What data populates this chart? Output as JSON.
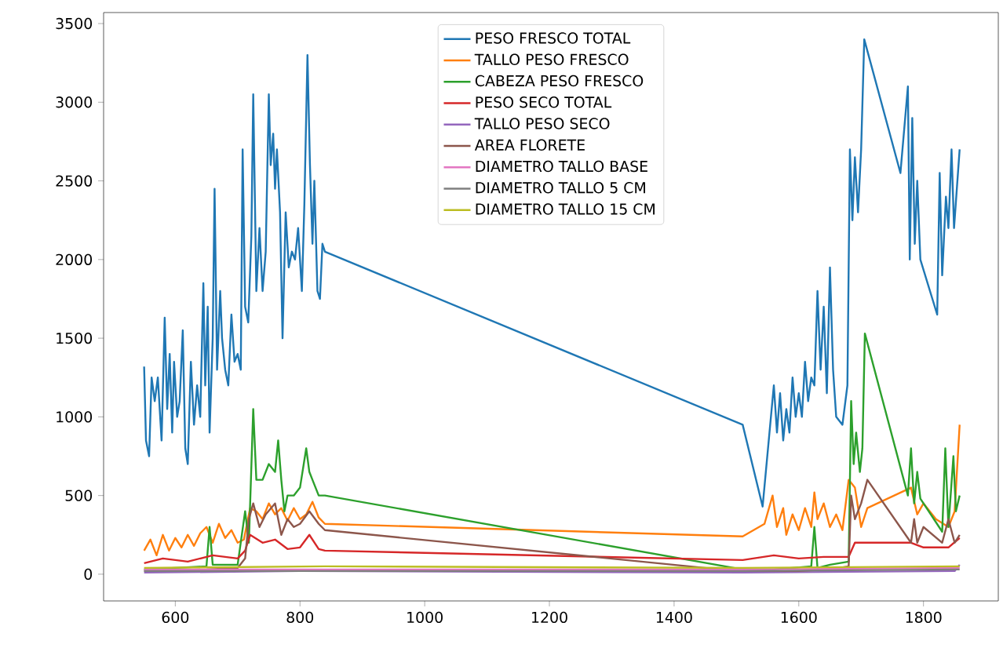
{
  "chart_data": {
    "type": "line",
    "legend": "top",
    "grid": false,
    "xlim": [
      485,
      1920
    ],
    "ylim": [
      -170,
      3570
    ],
    "xticks": [
      600,
      800,
      1000,
      1200,
      1400,
      1600,
      1800
    ],
    "yticks": [
      0,
      500,
      1000,
      1500,
      2000,
      2500,
      3000,
      3500
    ],
    "series": [
      {
        "name": "PESO FRESCO TOTAL",
        "color": "#1f77b4",
        "x": [
          550,
          553,
          558,
          562,
          567,
          572,
          578,
          583,
          587,
          591,
          595,
          598,
          603,
          607,
          612,
          616,
          620,
          625,
          630,
          635,
          640,
          645,
          648,
          652,
          655,
          660,
          663,
          667,
          672,
          675,
          680,
          685,
          690,
          695,
          700,
          705,
          708,
          712,
          717,
          722,
          725,
          730,
          735,
          740,
          745,
          750,
          753,
          757,
          760,
          763,
          768,
          772,
          777,
          782,
          787,
          792,
          797,
          803,
          807,
          812,
          816,
          820,
          823,
          828,
          832,
          836,
          840,
          1510,
          1542,
          1560,
          1565,
          1570,
          1575,
          1580,
          1585,
          1590,
          1595,
          1600,
          1605,
          1610,
          1615,
          1620,
          1625,
          1630,
          1635,
          1640,
          1645,
          1650,
          1655,
          1660,
          1670,
          1678,
          1682,
          1686,
          1690,
          1695,
          1700,
          1705,
          1763,
          1775,
          1778,
          1782,
          1786,
          1790,
          1795,
          1822,
          1826,
          1830,
          1836,
          1840,
          1845,
          1849,
          1858
        ],
        "values": [
          1320,
          850,
          750,
          1250,
          1100,
          1250,
          850,
          1630,
          1050,
          1400,
          900,
          1350,
          1000,
          1100,
          1550,
          800,
          700,
          1350,
          950,
          1200,
          1000,
          1850,
          1200,
          1700,
          900,
          1500,
          2450,
          1300,
          1800,
          1500,
          1300,
          1200,
          1650,
          1350,
          1400,
          1300,
          2700,
          1700,
          1600,
          2150,
          3050,
          1800,
          2200,
          1800,
          2050,
          3050,
          2600,
          2800,
          2450,
          2700,
          2300,
          1500,
          2300,
          1950,
          2050,
          2000,
          2200,
          1800,
          2350,
          3300,
          2600,
          2100,
          2500,
          1800,
          1750,
          2100,
          2050,
          950,
          430,
          1200,
          900,
          1150,
          850,
          1050,
          900,
          1250,
          1000,
          1150,
          1000,
          1350,
          1100,
          1250,
          1200,
          1800,
          1300,
          1700,
          1150,
          1950,
          1300,
          1000,
          950,
          1200,
          2700,
          2250,
          2650,
          2300,
          2700,
          3400,
          2550,
          3100,
          2000,
          2900,
          2100,
          2500,
          2000,
          1650,
          2550,
          1900,
          2400,
          2200,
          2700,
          2200,
          2700
        ]
      },
      {
        "name": "TALLO PESO FRESCO",
        "color": "#ff7f0e",
        "x": [
          550,
          560,
          570,
          580,
          590,
          600,
          610,
          620,
          630,
          640,
          650,
          660,
          670,
          680,
          690,
          700,
          710,
          720,
          730,
          740,
          750,
          760,
          770,
          780,
          790,
          800,
          810,
          820,
          830,
          840,
          1510,
          1545,
          1558,
          1565,
          1575,
          1580,
          1590,
          1600,
          1610,
          1620,
          1625,
          1630,
          1640,
          1650,
          1660,
          1670,
          1680,
          1690,
          1700,
          1710,
          1780,
          1790,
          1800,
          1820,
          1840,
          1850,
          1858
        ],
        "values": [
          150,
          220,
          120,
          250,
          150,
          230,
          170,
          250,
          180,
          260,
          300,
          200,
          320,
          230,
          280,
          200,
          220,
          420,
          400,
          350,
          450,
          380,
          420,
          340,
          420,
          350,
          380,
          460,
          360,
          320,
          240,
          320,
          500,
          300,
          420,
          250,
          380,
          280,
          420,
          300,
          520,
          350,
          450,
          300,
          380,
          280,
          600,
          550,
          300,
          420,
          550,
          380,
          450,
          350,
          300,
          400,
          950
        ]
      },
      {
        "name": "CABEZA PESO FRESCO",
        "color": "#2ca02c",
        "x": [
          550,
          600,
          650,
          655,
          660,
          700,
          712,
          718,
          725,
          730,
          740,
          750,
          760,
          765,
          770,
          775,
          780,
          790,
          800,
          810,
          815,
          820,
          830,
          840,
          1510,
          1560,
          1620,
          1625,
          1630,
          1650,
          1680,
          1684,
          1688,
          1692,
          1698,
          1702,
          1706,
          1775,
          1780,
          1785,
          1790,
          1795,
          1800,
          1830,
          1835,
          1840,
          1848,
          1852,
          1858
        ],
        "values": [
          30,
          40,
          50,
          300,
          60,
          60,
          400,
          200,
          1050,
          600,
          600,
          700,
          650,
          850,
          600,
          400,
          500,
          500,
          550,
          800,
          650,
          600,
          500,
          500,
          30,
          30,
          50,
          300,
          40,
          60,
          80,
          1100,
          700,
          900,
          650,
          800,
          1530,
          500,
          800,
          450,
          650,
          480,
          450,
          270,
          800,
          300,
          750,
          400,
          500
        ]
      },
      {
        "name": "PESO SECO TOTAL",
        "color": "#d62728",
        "x": [
          550,
          580,
          620,
          660,
          700,
          712,
          720,
          740,
          760,
          780,
          800,
          815,
          830,
          840,
          1510,
          1560,
          1600,
          1640,
          1680,
          1690,
          1700,
          1780,
          1800,
          1840,
          1858
        ],
        "values": [
          70,
          100,
          80,
          120,
          100,
          150,
          250,
          200,
          220,
          160,
          170,
          250,
          160,
          150,
          90,
          120,
          100,
          110,
          110,
          200,
          200,
          200,
          170,
          170,
          230
        ]
      },
      {
        "name": "TALLO PESO SECO",
        "color": "#9467bd",
        "x": [
          550,
          800,
          1510,
          1850,
          1858
        ],
        "values": [
          10,
          20,
          10,
          20,
          60
        ]
      },
      {
        "name": "AREA FLORETE",
        "color": "#8c564b",
        "x": [
          550,
          650,
          700,
          712,
          718,
          725,
          735,
          745,
          760,
          770,
          780,
          790,
          800,
          815,
          830,
          840,
          1500,
          1600,
          1650,
          1680,
          1684,
          1690,
          1700,
          1710,
          1780,
          1785,
          1790,
          1800,
          1830,
          1840,
          1850,
          1858
        ],
        "values": [
          20,
          30,
          40,
          100,
          350,
          450,
          300,
          380,
          450,
          250,
          350,
          300,
          320,
          400,
          320,
          280,
          20,
          20,
          30,
          50,
          500,
          350,
          450,
          600,
          200,
          350,
          200,
          300,
          200,
          350,
          200,
          250
        ]
      },
      {
        "name": "DIAMETRO TALLO BASE",
        "color": "#e377c2",
        "x": [
          550,
          840,
          1510,
          1858
        ],
        "values": [
          30,
          30,
          30,
          40
        ]
      },
      {
        "name": "DIAMETRO TALLO 5 CM",
        "color": "#7f7f7f",
        "x": [
          550,
          840,
          1510,
          1858
        ],
        "values": [
          20,
          20,
          20,
          30
        ]
      },
      {
        "name": "DIAMETRO TALLO 15 CM",
        "color": "#bcbd22",
        "x": [
          550,
          840,
          1510,
          1858
        ],
        "values": [
          40,
          50,
          40,
          50
        ]
      }
    ]
  }
}
